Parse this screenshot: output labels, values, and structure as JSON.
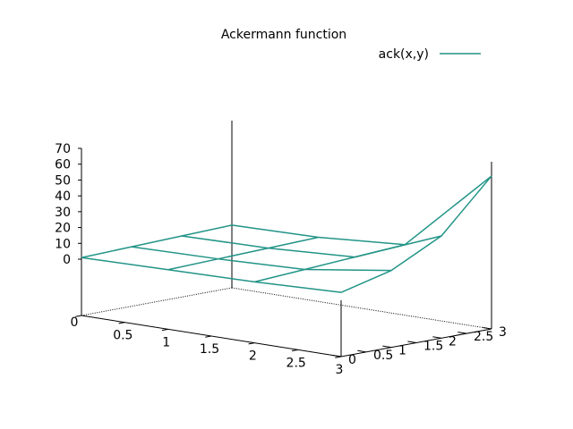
{
  "chart_data": {
    "type": "surface",
    "title": "Ackermann function",
    "legend": {
      "position": "top-right",
      "entries": [
        {
          "name": "ack(x,y)",
          "color": "#229487"
        }
      ]
    },
    "x": [
      0,
      1,
      2,
      3
    ],
    "y": [
      0,
      1,
      2,
      3
    ],
    "z": [
      [
        1,
        2,
        3,
        4
      ],
      [
        2,
        3,
        4,
        5
      ],
      [
        3,
        5,
        7,
        9
      ],
      [
        5,
        13,
        29,
        61
      ]
    ],
    "xlim": [
      0,
      3
    ],
    "ylim": [
      0,
      3
    ],
    "zlim": [
      0,
      70
    ],
    "x_ticks": [
      "0",
      "0.5",
      "1",
      "1.5",
      "2",
      "2.5",
      "3"
    ],
    "y_ticks": [
      "0",
      "0.5",
      "1",
      "1.5",
      "2",
      "2.5",
      "3"
    ],
    "z_ticks": [
      "0",
      "10",
      "20",
      "30",
      "40",
      "50",
      "60",
      "70"
    ],
    "line_color": "#229487",
    "grid": false
  }
}
